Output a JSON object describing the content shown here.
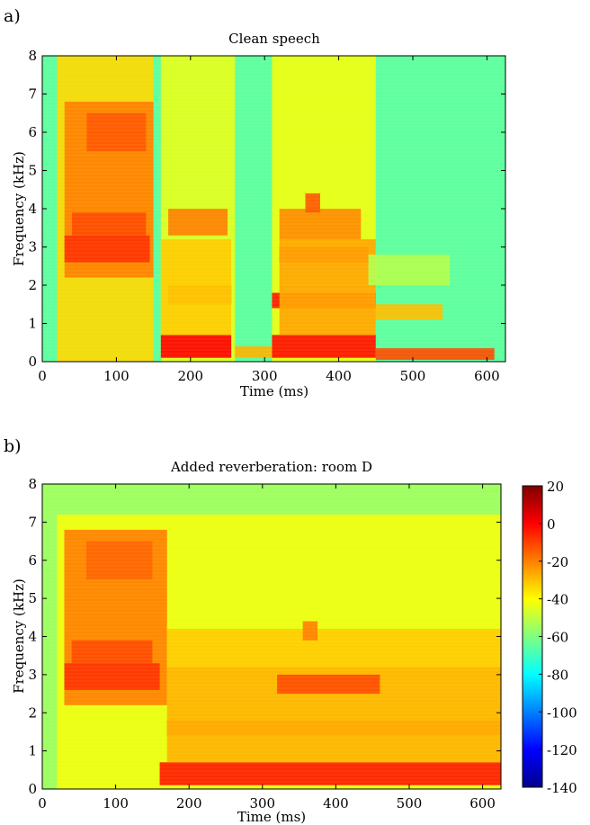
{
  "chart_data": [
    {
      "type": "heatmap",
      "panel_label": "a)",
      "title": "Clean speech",
      "xlabel": "Time (ms)",
      "ylabel": "Frequency (kHz)",
      "xlim": [
        0,
        625
      ],
      "ylim": [
        0,
        8
      ],
      "x_ticks": [
        0,
        100,
        200,
        300,
        400,
        500,
        600
      ],
      "y_ticks": [
        0,
        1,
        2,
        3,
        4,
        5,
        6,
        7,
        8
      ],
      "z_unit": "dB",
      "background_level_db": -65,
      "regions": [
        {
          "t": [
            20,
            150
          ],
          "f": [
            0.0,
            8.0
          ],
          "db": -34
        },
        {
          "t": [
            30,
            150
          ],
          "f": [
            2.2,
            6.8
          ],
          "db": -20
        },
        {
          "t": [
            30,
            145
          ],
          "f": [
            2.6,
            3.3
          ],
          "db": -8
        },
        {
          "t": [
            40,
            140
          ],
          "f": [
            3.3,
            3.9
          ],
          "db": -12
        },
        {
          "t": [
            60,
            140
          ],
          "f": [
            5.5,
            6.5
          ],
          "db": -14
        },
        {
          "t": [
            160,
            260
          ],
          "f": [
            0.0,
            8.0
          ],
          "db": -44
        },
        {
          "t": [
            160,
            255
          ],
          "f": [
            0.1,
            0.7
          ],
          "db": 0
        },
        {
          "t": [
            170,
            255
          ],
          "f": [
            1.5,
            2.0
          ],
          "db": -10
        },
        {
          "t": [
            170,
            250
          ],
          "f": [
            3.3,
            4.0
          ],
          "db": -20
        },
        {
          "t": [
            160,
            255
          ],
          "f": [
            0.7,
            3.2
          ],
          "db": -32
        },
        {
          "t": [
            260,
            320
          ],
          "f": [
            0.1,
            0.4
          ],
          "db": -28
        },
        {
          "t": [
            310,
            450
          ],
          "f": [
            0.0,
            8.0
          ],
          "db": -42
        },
        {
          "t": [
            310,
            450
          ],
          "f": [
            0.1,
            0.7
          ],
          "db": -2
        },
        {
          "t": [
            310,
            450
          ],
          "f": [
            1.4,
            1.8
          ],
          "db": -4
        },
        {
          "t": [
            320,
            440
          ],
          "f": [
            2.6,
            3.0
          ],
          "db": -8
        },
        {
          "t": [
            320,
            430
          ],
          "f": [
            3.2,
            4.0
          ],
          "db": -22
        },
        {
          "t": [
            355,
            375
          ],
          "f": [
            3.9,
            4.4
          ],
          "db": -14
        },
        {
          "t": [
            320,
            450
          ],
          "f": [
            0.7,
            3.2
          ],
          "db": -26
        },
        {
          "t": [
            450,
            610
          ],
          "f": [
            0.05,
            0.35
          ],
          "db": -12
        },
        {
          "t": [
            450,
            540
          ],
          "f": [
            1.1,
            1.5
          ],
          "db": -30
        },
        {
          "t": [
            440,
            550
          ],
          "f": [
            2.0,
            2.8
          ],
          "db": -52
        }
      ]
    },
    {
      "type": "heatmap",
      "panel_label": "b)",
      "title": "Added reverberation: room D",
      "xlabel": "Time (ms)",
      "ylabel": "Frequency (kHz)",
      "xlim": [
        0,
        625
      ],
      "ylim": [
        0,
        8
      ],
      "x_ticks": [
        0,
        100,
        200,
        300,
        400,
        500,
        600
      ],
      "y_ticks": [
        0,
        1,
        2,
        3,
        4,
        5,
        6,
        7,
        8
      ],
      "z_unit": "dB",
      "background_level_db": -55,
      "regions": [
        {
          "t": [
            20,
            625
          ],
          "f": [
            0.0,
            7.2
          ],
          "db": -42
        },
        {
          "t": [
            30,
            170
          ],
          "f": [
            2.2,
            6.8
          ],
          "db": -20
        },
        {
          "t": [
            30,
            160
          ],
          "f": [
            2.6,
            3.3
          ],
          "db": -8
        },
        {
          "t": [
            40,
            150
          ],
          "f": [
            3.3,
            3.9
          ],
          "db": -12
        },
        {
          "t": [
            60,
            150
          ],
          "f": [
            5.5,
            6.5
          ],
          "db": -16
        },
        {
          "t": [
            160,
            625
          ],
          "f": [
            0.1,
            0.7
          ],
          "db": -4
        },
        {
          "t": [
            170,
            625
          ],
          "f": [
            1.4,
            1.8
          ],
          "db": -12
        },
        {
          "t": [
            170,
            625
          ],
          "f": [
            0.7,
            3.2
          ],
          "db": -28
        },
        {
          "t": [
            320,
            460
          ],
          "f": [
            2.5,
            3.0
          ],
          "db": -12
        },
        {
          "t": [
            170,
            625
          ],
          "f": [
            3.2,
            4.2
          ],
          "db": -32
        },
        {
          "t": [
            355,
            375
          ],
          "f": [
            3.9,
            4.4
          ],
          "db": -20
        }
      ]
    }
  ],
  "colorbar": {
    "min": -140,
    "max": 20,
    "ticks": [
      20,
      0,
      -20,
      -40,
      -60,
      -80,
      -100,
      -120,
      -140
    ],
    "colormap": "jet"
  }
}
